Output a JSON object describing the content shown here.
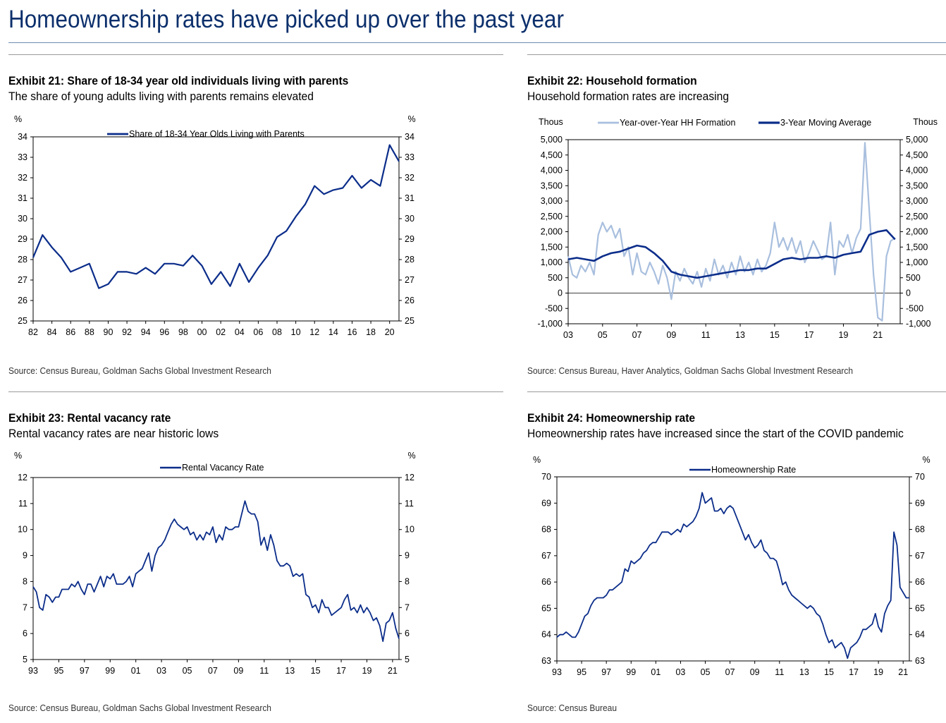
{
  "page": {
    "title": "Homeownership rates have picked up over the past year"
  },
  "colors": {
    "title": "#0b2f6b",
    "series_dark": "#0b2d8a",
    "series_light": "#a9bfde"
  },
  "exhibits": [
    {
      "title": "Exhibit 21: Share of 18-34 year old individuals living with parents",
      "subtitle": "The share of young adults living with parents remains elevated",
      "source": "Source: Census Bureau, Goldman Sachs Global Investment Research"
    },
    {
      "title": "Exhibit 22: Household formation",
      "subtitle": "Household formation rates are increasing",
      "source": "Source: Census Bureau, Haver Analytics, Goldman Sachs Global Investment Research"
    },
    {
      "title": "Exhibit 23: Rental vacancy rate",
      "subtitle": "Rental vacancy rates are near historic lows",
      "source": "Source: Census Bureau, Goldman Sachs Global Investment Research"
    },
    {
      "title": "Exhibit 24: Homeownership rate",
      "subtitle": "Homeownership rates have increased since the start of the COVID pandemic",
      "source": "Source: Census Bureau"
    }
  ],
  "chart_data": [
    {
      "type": "line",
      "title": "Share of 18-34 year old individuals living with parents",
      "left_unit": "%",
      "right_unit": "%",
      "ylim": [
        25,
        34
      ],
      "yticks": [
        "34",
        "33",
        "32",
        "31",
        "30",
        "29",
        "28",
        "27",
        "26",
        "25"
      ],
      "xlim": [
        1982,
        2021
      ],
      "xticks": [
        "82",
        "84",
        "86",
        "88",
        "90",
        "92",
        "94",
        "96",
        "98",
        "00",
        "02",
        "04",
        "06",
        "08",
        "10",
        "12",
        "14",
        "16",
        "18",
        "20"
      ],
      "legend": [
        "Share of 18-34 Year Olds Living with Parents"
      ],
      "series": [
        {
          "name": "Share of 18-34 Year Olds Living with Parents",
          "x": [
            1982,
            1983,
            1984,
            1985,
            1986,
            1987,
            1988,
            1989,
            1990,
            1991,
            1992,
            1993,
            1994,
            1995,
            1996,
            1997,
            1998,
            1999,
            2000,
            2001,
            2002,
            2003,
            2004,
            2005,
            2006,
            2007,
            2008,
            2009,
            2010,
            2011,
            2012,
            2013,
            2014,
            2015,
            2016,
            2017,
            2018,
            2019,
            2020,
            2021
          ],
          "values": [
            28.1,
            29.2,
            28.6,
            28.1,
            27.4,
            27.6,
            27.8,
            26.6,
            26.8,
            27.4,
            27.4,
            27.3,
            27.6,
            27.3,
            27.8,
            27.8,
            27.7,
            28.2,
            27.7,
            26.8,
            27.4,
            26.7,
            27.8,
            26.9,
            27.6,
            28.2,
            29.1,
            29.4,
            30.1,
            30.7,
            31.6,
            31.2,
            31.4,
            31.5,
            32.1,
            31.5,
            31.9,
            31.6,
            33.6,
            32.8
          ]
        }
      ]
    },
    {
      "type": "line",
      "title": "Household formation",
      "left_unit": "Thous",
      "right_unit": "Thous",
      "ylim": [
        -1000,
        5000
      ],
      "yticks": [
        "5,000",
        "4,500",
        "4,000",
        "3,500",
        "3,000",
        "2,500",
        "2,000",
        "1,500",
        "1,000",
        "500",
        "0",
        "-500",
        "-1,000"
      ],
      "xlim": [
        2003,
        2022.3
      ],
      "xticks": [
        "03",
        "05",
        "07",
        "09",
        "11",
        "13",
        "15",
        "17",
        "19",
        "21"
      ],
      "legend": [
        "Year-over-Year HH Formation",
        "3-Year Moving Average"
      ],
      "series": [
        {
          "name": "Year-over-Year HH Formation",
          "x": [
            2003.0,
            2003.25,
            2003.5,
            2003.75,
            2004.0,
            2004.25,
            2004.5,
            2004.75,
            2005.0,
            2005.25,
            2005.5,
            2005.75,
            2006.0,
            2006.25,
            2006.5,
            2006.75,
            2007.0,
            2007.25,
            2007.5,
            2007.75,
            2008.0,
            2008.25,
            2008.5,
            2008.75,
            2009.0,
            2009.25,
            2009.5,
            2009.75,
            2010.0,
            2010.25,
            2010.5,
            2010.75,
            2011.0,
            2011.25,
            2011.5,
            2011.75,
            2012.0,
            2012.25,
            2012.5,
            2012.75,
            2013.0,
            2013.25,
            2013.5,
            2013.75,
            2014.0,
            2014.25,
            2014.5,
            2014.75,
            2015.0,
            2015.25,
            2015.5,
            2015.75,
            2016.0,
            2016.25,
            2016.5,
            2016.75,
            2017.0,
            2017.25,
            2017.5,
            2017.75,
            2018.0,
            2018.25,
            2018.5,
            2018.75,
            2019.0,
            2019.25,
            2019.5,
            2019.75,
            2020.0,
            2020.25,
            2020.5,
            2020.75,
            2021.0,
            2021.25,
            2021.5,
            2021.75,
            2022.0
          ],
          "values": [
            1200,
            600,
            500,
            900,
            700,
            1000,
            600,
            1900,
            2300,
            2000,
            2200,
            1800,
            2100,
            1200,
            1500,
            600,
            1300,
            700,
            600,
            1000,
            700,
            300,
            900,
            500,
            -200,
            700,
            400,
            800,
            500,
            300,
            700,
            200,
            800,
            400,
            1100,
            600,
            900,
            500,
            1000,
            600,
            1200,
            700,
            1000,
            600,
            1100,
            700,
            900,
            1300,
            2300,
            1500,
            1800,
            1400,
            1800,
            1300,
            1700,
            1000,
            1300,
            1700,
            1400,
            1100,
            1200,
            2300,
            600,
            1700,
            1500,
            1900,
            1300,
            1800,
            2100,
            4900,
            2700,
            600,
            -800,
            -900,
            1200,
            1700,
            1800
          ]
        },
        {
          "name": "3-Year Moving Average",
          "x": [
            2003,
            2003.5,
            2004,
            2004.5,
            2005,
            2005.5,
            2006,
            2006.5,
            2007,
            2007.5,
            2008,
            2008.5,
            2009,
            2009.5,
            2010,
            2010.5,
            2011,
            2011.5,
            2012,
            2012.5,
            2013,
            2013.5,
            2014,
            2014.5,
            2015,
            2015.5,
            2016,
            2016.5,
            2017,
            2017.5,
            2018,
            2018.5,
            2019,
            2019.5,
            2020,
            2020.5,
            2021,
            2021.5,
            2022
          ],
          "values": [
            1100,
            1150,
            1100,
            1050,
            1200,
            1300,
            1350,
            1450,
            1550,
            1500,
            1300,
            1050,
            700,
            600,
            550,
            500,
            550,
            600,
            650,
            700,
            750,
            750,
            800,
            800,
            950,
            1100,
            1150,
            1100,
            1150,
            1150,
            1200,
            1150,
            1250,
            1300,
            1350,
            1900,
            2000,
            2050,
            1750
          ]
        }
      ]
    },
    {
      "type": "line",
      "title": "Rental vacancy rate",
      "left_unit": "%",
      "right_unit": "%",
      "ylim": [
        5,
        12
      ],
      "yticks": [
        "12",
        "11",
        "10",
        "9",
        "8",
        "7",
        "6",
        "5"
      ],
      "xlim": [
        1993,
        2021.5
      ],
      "xticks": [
        "93",
        "95",
        "97",
        "99",
        "01",
        "03",
        "05",
        "07",
        "09",
        "11",
        "13",
        "15",
        "17",
        "19",
        "21"
      ],
      "legend": [
        "Rental Vacancy Rate"
      ],
      "series": [
        {
          "name": "Rental Vacancy Rate",
          "x": [
            1993.0,
            1993.25,
            1993.5,
            1993.75,
            1994.0,
            1994.25,
            1994.5,
            1994.75,
            1995.0,
            1995.25,
            1995.5,
            1995.75,
            1996.0,
            1996.25,
            1996.5,
            1996.75,
            1997.0,
            1997.25,
            1997.5,
            1997.75,
            1998.0,
            1998.25,
            1998.5,
            1998.75,
            1999.0,
            1999.25,
            1999.5,
            1999.75,
            2000.0,
            2000.25,
            2000.5,
            2000.75,
            2001.0,
            2001.25,
            2001.5,
            2001.75,
            2002.0,
            2002.25,
            2002.5,
            2002.75,
            2003.0,
            2003.25,
            2003.5,
            2003.75,
            2004.0,
            2004.25,
            2004.5,
            2004.75,
            2005.0,
            2005.25,
            2005.5,
            2005.75,
            2006.0,
            2006.25,
            2006.5,
            2006.75,
            2007.0,
            2007.25,
            2007.5,
            2007.75,
            2008.0,
            2008.25,
            2008.5,
            2008.75,
            2009.0,
            2009.25,
            2009.5,
            2009.75,
            2010.0,
            2010.25,
            2010.5,
            2010.75,
            2011.0,
            2011.25,
            2011.5,
            2011.75,
            2012.0,
            2012.25,
            2012.5,
            2012.75,
            2013.0,
            2013.25,
            2013.5,
            2013.75,
            2014.0,
            2014.25,
            2014.5,
            2014.75,
            2015.0,
            2015.25,
            2015.5,
            2015.75,
            2016.0,
            2016.25,
            2016.5,
            2016.75,
            2017.0,
            2017.25,
            2017.5,
            2017.75,
            2018.0,
            2018.25,
            2018.5,
            2018.75,
            2019.0,
            2019.25,
            2019.5,
            2019.75,
            2020.0,
            2020.25,
            2020.5,
            2020.75,
            2021.0,
            2021.25,
            2021.5
          ],
          "values": [
            7.8,
            7.6,
            7.0,
            6.9,
            7.5,
            7.4,
            7.2,
            7.4,
            7.4,
            7.7,
            7.7,
            7.7,
            7.9,
            7.8,
            8.0,
            7.7,
            7.5,
            7.9,
            7.9,
            7.6,
            7.9,
            8.2,
            7.8,
            8.2,
            8.1,
            8.3,
            7.9,
            7.9,
            7.9,
            8.0,
            8.2,
            7.8,
            8.3,
            8.4,
            8.5,
            8.8,
            9.1,
            8.4,
            9.0,
            9.3,
            9.4,
            9.6,
            9.9,
            10.2,
            10.4,
            10.2,
            10.1,
            10.0,
            10.1,
            9.8,
            9.9,
            9.6,
            9.8,
            9.6,
            9.9,
            9.8,
            10.1,
            9.5,
            9.8,
            9.6,
            10.1,
            10.0,
            10.0,
            10.1,
            10.1,
            10.6,
            11.1,
            10.7,
            10.6,
            10.6,
            10.3,
            9.4,
            9.7,
            9.2,
            9.8,
            9.4,
            8.8,
            8.6,
            8.6,
            8.7,
            8.6,
            8.2,
            8.3,
            8.2,
            8.3,
            7.5,
            7.4,
            7.0,
            7.1,
            6.8,
            7.3,
            7.0,
            7.0,
            6.7,
            6.8,
            6.9,
            7.0,
            7.3,
            7.5,
            6.9,
            7.0,
            6.8,
            7.1,
            6.8,
            7.0,
            6.8,
            6.5,
            6.6,
            6.3,
            5.7,
            6.4,
            6.5,
            6.8,
            6.2,
            5.8
          ]
        }
      ]
    },
    {
      "type": "line",
      "title": "Homeownership rate",
      "left_unit": "%",
      "right_unit": "%",
      "ylim": [
        63,
        70
      ],
      "yticks": [
        "70",
        "69",
        "68",
        "67",
        "66",
        "65",
        "64",
        "63"
      ],
      "xlim": [
        1993,
        2021.5
      ],
      "xticks": [
        "93",
        "95",
        "97",
        "99",
        "01",
        "03",
        "05",
        "07",
        "09",
        "11",
        "13",
        "15",
        "17",
        "19",
        "21"
      ],
      "legend": [
        "Homeownership Rate"
      ],
      "series": [
        {
          "name": "Homeownership Rate",
          "x": [
            1993.0,
            1993.25,
            1993.5,
            1993.75,
            1994.0,
            1994.25,
            1994.5,
            1994.75,
            1995.0,
            1995.25,
            1995.5,
            1995.75,
            1996.0,
            1996.25,
            1996.5,
            1996.75,
            1997.0,
            1997.25,
            1997.5,
            1997.75,
            1998.0,
            1998.25,
            1998.5,
            1998.75,
            1999.0,
            1999.25,
            1999.5,
            1999.75,
            2000.0,
            2000.25,
            2000.5,
            2000.75,
            2001.0,
            2001.25,
            2001.5,
            2001.75,
            2002.0,
            2002.25,
            2002.5,
            2002.75,
            2003.0,
            2003.25,
            2003.5,
            2003.75,
            2004.0,
            2004.25,
            2004.5,
            2004.75,
            2005.0,
            2005.25,
            2005.5,
            2005.75,
            2006.0,
            2006.25,
            2006.5,
            2006.75,
            2007.0,
            2007.25,
            2007.5,
            2007.75,
            2008.0,
            2008.25,
            2008.5,
            2008.75,
            2009.0,
            2009.25,
            2009.5,
            2009.75,
            2010.0,
            2010.25,
            2010.5,
            2010.75,
            2011.0,
            2011.25,
            2011.5,
            2011.75,
            2012.0,
            2012.25,
            2012.5,
            2012.75,
            2013.0,
            2013.25,
            2013.5,
            2013.75,
            2014.0,
            2014.25,
            2014.5,
            2014.75,
            2015.0,
            2015.25,
            2015.5,
            2015.75,
            2016.0,
            2016.25,
            2016.5,
            2016.75,
            2017.0,
            2017.25,
            2017.5,
            2017.75,
            2018.0,
            2018.25,
            2018.5,
            2018.75,
            2019.0,
            2019.25,
            2019.5,
            2019.75,
            2020.0,
            2020.25,
            2020.5,
            2020.75,
            2021.0,
            2021.25,
            2021.5
          ],
          "values": [
            63.9,
            64.0,
            64.0,
            64.1,
            64.0,
            63.9,
            63.9,
            64.1,
            64.4,
            64.7,
            64.8,
            65.1,
            65.3,
            65.4,
            65.4,
            65.4,
            65.5,
            65.7,
            65.7,
            65.8,
            65.9,
            66.0,
            66.5,
            66.4,
            66.8,
            66.7,
            66.8,
            66.9,
            67.1,
            67.2,
            67.4,
            67.5,
            67.5,
            67.7,
            67.9,
            67.9,
            67.9,
            67.8,
            67.9,
            68.0,
            67.9,
            68.2,
            68.1,
            68.2,
            68.3,
            68.5,
            68.8,
            69.4,
            69.0,
            69.1,
            69.2,
            68.7,
            68.7,
            68.8,
            68.6,
            68.8,
            68.9,
            68.8,
            68.5,
            68.2,
            67.9,
            67.6,
            67.8,
            67.5,
            67.3,
            67.4,
            67.6,
            67.2,
            67.1,
            66.9,
            66.9,
            66.8,
            66.4,
            65.9,
            66.0,
            65.7,
            65.5,
            65.4,
            65.3,
            65.2,
            65.1,
            65.0,
            65.1,
            65.0,
            64.8,
            64.7,
            64.4,
            64.0,
            63.7,
            63.8,
            63.5,
            63.6,
            63.7,
            63.5,
            63.1,
            63.5,
            63.6,
            63.7,
            63.9,
            64.2,
            64.2,
            64.3,
            64.4,
            64.8,
            64.3,
            64.1,
            64.8,
            65.1,
            65.3,
            67.9,
            67.4,
            65.8,
            65.6,
            65.4,
            65.4
          ]
        }
      ]
    }
  ]
}
